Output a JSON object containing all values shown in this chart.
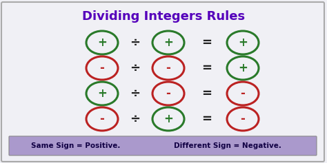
{
  "title": "Dividing Integers Rules",
  "title_color": "#5500bb",
  "title_fontsize": 13,
  "bg_color": "#f0f0f5",
  "border_color": "#aaaaaa",
  "footer_bg": "#aa99cc",
  "footer_text_left": "Same Sign = Positive.",
  "footer_text_right": "Different Sign = Negative.",
  "footer_fontsize": 7.5,
  "green_color": "#2a7a2a",
  "red_color": "#bb2222",
  "operator_color": "#222222",
  "rows": [
    {
      "left_sign": "+",
      "left_color": "green",
      "right_sign": "+",
      "right_color": "green",
      "result_sign": "+",
      "result_color": "green"
    },
    {
      "left_sign": "-",
      "left_color": "red",
      "right_sign": "-",
      "right_color": "red",
      "result_sign": "+",
      "result_color": "green"
    },
    {
      "left_sign": "+",
      "left_color": "green",
      "right_sign": "-",
      "right_color": "red",
      "result_sign": "-",
      "result_color": "red"
    },
    {
      "left_sign": "-",
      "left_color": "red",
      "right_sign": "+",
      "right_color": "green",
      "result_sign": "-",
      "result_color": "red"
    }
  ]
}
